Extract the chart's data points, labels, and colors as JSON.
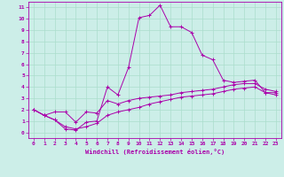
{
  "xlabel": "Windchill (Refroidissement éolien,°C)",
  "background_color": "#cceee8",
  "grid_color": "#aaddcc",
  "line_color": "#aa00aa",
  "xlim": [
    -0.5,
    23.5
  ],
  "ylim": [
    -0.5,
    11.5
  ],
  "xticks": [
    0,
    1,
    2,
    3,
    4,
    5,
    6,
    7,
    8,
    9,
    10,
    11,
    12,
    13,
    14,
    15,
    16,
    17,
    18,
    19,
    20,
    21,
    22,
    23
  ],
  "yticks": [
    0,
    1,
    2,
    3,
    4,
    5,
    6,
    7,
    8,
    9,
    10,
    11
  ],
  "series1_x": [
    0,
    1,
    2,
    3,
    4,
    5,
    6,
    7,
    8,
    9,
    10,
    11,
    12,
    13,
    14,
    15,
    16,
    17,
    18,
    19,
    20,
    21,
    22,
    23
  ],
  "series1_y": [
    2.0,
    1.5,
    1.1,
    0.3,
    0.2,
    0.9,
    1.0,
    4.0,
    3.3,
    5.7,
    10.1,
    10.3,
    11.2,
    9.3,
    9.3,
    8.8,
    6.8,
    6.4,
    4.6,
    4.4,
    4.5,
    4.6,
    3.5,
    3.5
  ],
  "series2_x": [
    0,
    1,
    2,
    3,
    4,
    5,
    6,
    7,
    8,
    9,
    10,
    11,
    12,
    13,
    14,
    15,
    16,
    17,
    18,
    19,
    20,
    21,
    22,
    23
  ],
  "series2_y": [
    2.0,
    1.5,
    1.8,
    1.8,
    0.9,
    1.8,
    1.7,
    2.8,
    2.5,
    2.8,
    3.0,
    3.1,
    3.2,
    3.3,
    3.5,
    3.6,
    3.7,
    3.8,
    4.0,
    4.2,
    4.3,
    4.3,
    3.8,
    3.6
  ],
  "series3_x": [
    0,
    1,
    2,
    3,
    4,
    5,
    6,
    7,
    8,
    9,
    10,
    11,
    12,
    13,
    14,
    15,
    16,
    17,
    18,
    19,
    20,
    21,
    22,
    23
  ],
  "series3_y": [
    2.0,
    1.5,
    1.1,
    0.5,
    0.3,
    0.5,
    0.8,
    1.5,
    1.8,
    2.0,
    2.2,
    2.5,
    2.7,
    2.9,
    3.1,
    3.2,
    3.3,
    3.4,
    3.6,
    3.8,
    3.9,
    4.0,
    3.5,
    3.3
  ]
}
